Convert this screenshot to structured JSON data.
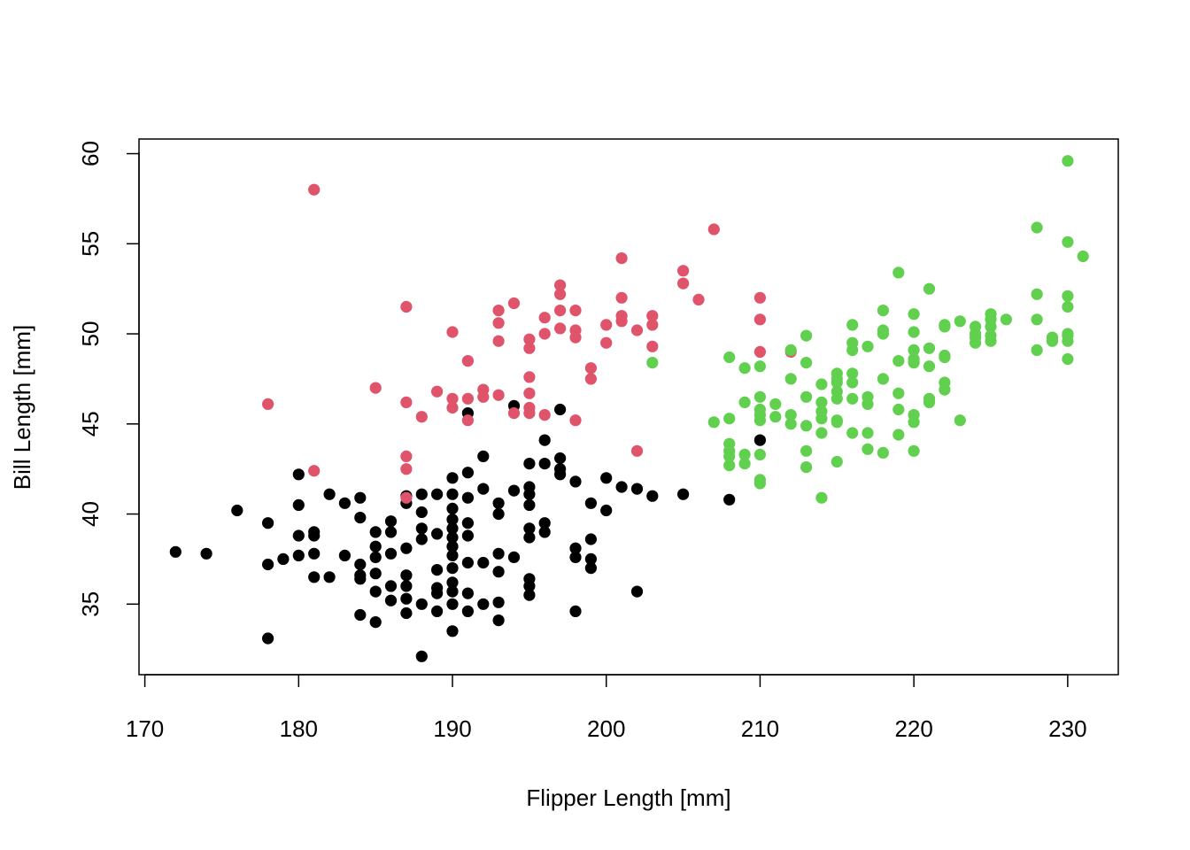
{
  "chart_data": {
    "type": "scatter",
    "title": "",
    "xlabel": "Flipper Length [mm]",
    "ylabel": "Bill Length [mm]",
    "xlim": [
      170,
      232
    ],
    "ylim": [
      31.5,
      60.5
    ],
    "x_ticks": [
      "170",
      "180",
      "190",
      "200",
      "210",
      "220",
      "230"
    ],
    "y_ticks": [
      "35",
      "40",
      "45",
      "50",
      "55",
      "60"
    ],
    "grid": false,
    "legend": "none",
    "series": [
      {
        "color": "#000000",
        "points": [
          [
            172,
            37.9
          ],
          [
            174,
            37.8
          ],
          [
            176,
            40.2
          ],
          [
            178,
            39.5
          ],
          [
            178,
            37.2
          ],
          [
            178,
            33.1
          ],
          [
            179,
            37.5
          ],
          [
            180,
            42.2
          ],
          [
            180,
            40.5
          ],
          [
            180,
            38.8
          ],
          [
            180,
            37.7
          ],
          [
            181,
            39.0
          ],
          [
            181,
            38.8
          ],
          [
            181,
            37.8
          ],
          [
            181,
            36.5
          ],
          [
            182,
            41.1
          ],
          [
            182,
            36.5
          ],
          [
            183,
            40.6
          ],
          [
            183,
            37.7
          ],
          [
            184,
            40.9
          ],
          [
            184,
            39.8
          ],
          [
            184,
            37.2
          ],
          [
            184,
            36.6
          ],
          [
            184,
            36.4
          ],
          [
            184,
            34.4
          ],
          [
            185,
            39.0
          ],
          [
            185,
            38.2
          ],
          [
            185,
            37.6
          ],
          [
            185,
            36.7
          ],
          [
            185,
            35.7
          ],
          [
            185,
            34.0
          ],
          [
            186,
            39.6
          ],
          [
            186,
            39.0
          ],
          [
            186,
            37.8
          ],
          [
            186,
            36.0
          ],
          [
            186,
            35.2
          ],
          [
            187,
            41.0
          ],
          [
            187,
            40.6
          ],
          [
            187,
            38.1
          ],
          [
            187,
            36.6
          ],
          [
            187,
            36.0
          ],
          [
            187,
            35.3
          ],
          [
            187,
            34.5
          ],
          [
            188,
            41.1
          ],
          [
            188,
            40.1
          ],
          [
            188,
            39.2
          ],
          [
            188,
            38.6
          ],
          [
            188,
            35.0
          ],
          [
            188,
            32.1
          ],
          [
            189,
            41.1
          ],
          [
            189,
            38.9
          ],
          [
            189,
            36.9
          ],
          [
            189,
            35.9
          ],
          [
            189,
            35.6
          ],
          [
            189,
            34.6
          ],
          [
            190,
            42.0
          ],
          [
            190,
            41.1
          ],
          [
            190,
            40.3
          ],
          [
            190,
            39.7
          ],
          [
            190,
            39.2
          ],
          [
            190,
            38.7
          ],
          [
            190,
            38.2
          ],
          [
            190,
            37.7
          ],
          [
            190,
            37.0
          ],
          [
            190,
            36.2
          ],
          [
            190,
            35.7
          ],
          [
            190,
            35.0
          ],
          [
            190,
            33.5
          ],
          [
            191,
            45.6
          ],
          [
            191,
            42.3
          ],
          [
            191,
            40.9
          ],
          [
            191,
            39.5
          ],
          [
            191,
            38.8
          ],
          [
            191,
            37.3
          ],
          [
            191,
            35.6
          ],
          [
            191,
            34.6
          ],
          [
            192,
            43.2
          ],
          [
            192,
            41.4
          ],
          [
            192,
            37.3
          ],
          [
            192,
            35.0
          ],
          [
            193,
            40.6
          ],
          [
            193,
            40.0
          ],
          [
            193,
            37.8
          ],
          [
            193,
            36.8
          ],
          [
            193,
            35.1
          ],
          [
            193,
            34.1
          ],
          [
            194,
            46.0
          ],
          [
            194,
            41.3
          ],
          [
            194,
            37.6
          ],
          [
            195,
            42.8
          ],
          [
            195,
            41.5
          ],
          [
            195,
            41.1
          ],
          [
            195,
            40.5
          ],
          [
            195,
            39.2
          ],
          [
            195,
            38.7
          ],
          [
            195,
            36.4
          ],
          [
            195,
            36.0
          ],
          [
            195,
            35.5
          ],
          [
            196,
            44.1
          ],
          [
            196,
            42.8
          ],
          [
            196,
            39.5
          ],
          [
            196,
            39.0
          ],
          [
            197,
            45.8
          ],
          [
            197,
            43.1
          ],
          [
            197,
            42.5
          ],
          [
            197,
            42.2
          ],
          [
            198,
            41.8
          ],
          [
            198,
            38.1
          ],
          [
            198,
            37.6
          ],
          [
            198,
            34.6
          ],
          [
            199,
            40.6
          ],
          [
            199,
            38.6
          ],
          [
            199,
            37.5
          ],
          [
            199,
            37.0
          ],
          [
            200,
            42.0
          ],
          [
            200,
            40.2
          ],
          [
            201,
            41.5
          ],
          [
            202,
            41.4
          ],
          [
            202,
            35.7
          ],
          [
            203,
            41.0
          ],
          [
            205,
            41.1
          ],
          [
            208,
            40.8
          ],
          [
            210,
            44.1
          ]
        ]
      },
      {
        "color": "#DF536B",
        "points": [
          [
            178,
            46.1
          ],
          [
            181,
            58.0
          ],
          [
            181,
            42.4
          ],
          [
            185,
            47.0
          ],
          [
            187,
            51.5
          ],
          [
            187,
            46.2
          ],
          [
            187,
            43.2
          ],
          [
            187,
            42.5
          ],
          [
            187,
            40.9
          ],
          [
            188,
            45.4
          ],
          [
            189,
            46.8
          ],
          [
            190,
            50.1
          ],
          [
            190,
            46.4
          ],
          [
            190,
            45.9
          ],
          [
            191,
            48.5
          ],
          [
            191,
            46.4
          ],
          [
            191,
            45.2
          ],
          [
            192,
            46.9
          ],
          [
            192,
            46.5
          ],
          [
            193,
            51.3
          ],
          [
            193,
            50.6
          ],
          [
            193,
            49.6
          ],
          [
            193,
            46.6
          ],
          [
            194,
            51.7
          ],
          [
            194,
            45.6
          ],
          [
            195,
            49.7
          ],
          [
            195,
            49.2
          ],
          [
            195,
            47.6
          ],
          [
            195,
            46.7
          ],
          [
            195,
            45.9
          ],
          [
            195,
            45.6
          ],
          [
            196,
            50.9
          ],
          [
            196,
            50.0
          ],
          [
            196,
            45.5
          ],
          [
            197,
            52.7
          ],
          [
            197,
            52.2
          ],
          [
            197,
            51.3
          ],
          [
            197,
            50.3
          ],
          [
            198,
            51.3
          ],
          [
            198,
            50.2
          ],
          [
            198,
            49.8
          ],
          [
            198,
            45.2
          ],
          [
            199,
            48.1
          ],
          [
            199,
            47.5
          ],
          [
            200,
            50.5
          ],
          [
            200,
            49.5
          ],
          [
            201,
            54.2
          ],
          [
            201,
            52.0
          ],
          [
            201,
            51.0
          ],
          [
            201,
            50.7
          ],
          [
            202,
            50.2
          ],
          [
            202,
            43.5
          ],
          [
            203,
            51.0
          ],
          [
            203,
            50.5
          ],
          [
            203,
            49.3
          ],
          [
            205,
            53.5
          ],
          [
            205,
            52.8
          ],
          [
            206,
            51.9
          ],
          [
            207,
            55.8
          ],
          [
            210,
            52.0
          ],
          [
            210,
            50.8
          ],
          [
            210,
            49.0
          ],
          [
            212,
            49.0
          ]
        ]
      },
      {
        "color": "#61D04F",
        "points": [
          [
            203,
            48.4
          ],
          [
            207,
            45.1
          ],
          [
            208,
            48.7
          ],
          [
            208,
            45.3
          ],
          [
            208,
            43.9
          ],
          [
            208,
            43.5
          ],
          [
            208,
            43.2
          ],
          [
            208,
            42.7
          ],
          [
            209,
            48.1
          ],
          [
            209,
            46.2
          ],
          [
            209,
            43.3
          ],
          [
            209,
            42.8
          ],
          [
            210,
            48.2
          ],
          [
            210,
            46.5
          ],
          [
            210,
            45.8
          ],
          [
            210,
            45.5
          ],
          [
            210,
            45.2
          ],
          [
            210,
            43.3
          ],
          [
            210,
            41.9
          ],
          [
            210,
            41.7
          ],
          [
            211,
            46.1
          ],
          [
            211,
            45.4
          ],
          [
            212,
            49.1
          ],
          [
            212,
            47.5
          ],
          [
            212,
            45.5
          ],
          [
            212,
            45.0
          ],
          [
            213,
            49.9
          ],
          [
            213,
            48.4
          ],
          [
            213,
            46.5
          ],
          [
            213,
            44.9
          ],
          [
            213,
            43.5
          ],
          [
            213,
            42.6
          ],
          [
            214,
            47.2
          ],
          [
            214,
            46.2
          ],
          [
            214,
            45.7
          ],
          [
            214,
            45.3
          ],
          [
            214,
            44.5
          ],
          [
            214,
            40.9
          ],
          [
            215,
            47.8
          ],
          [
            215,
            47.5
          ],
          [
            215,
            47.3
          ],
          [
            215,
            46.8
          ],
          [
            215,
            46.4
          ],
          [
            215,
            45.2
          ],
          [
            215,
            45.1
          ],
          [
            215,
            42.9
          ],
          [
            216,
            50.5
          ],
          [
            216,
            49.5
          ],
          [
            216,
            49.1
          ],
          [
            216,
            47.8
          ],
          [
            216,
            47.3
          ],
          [
            216,
            46.4
          ],
          [
            216,
            44.5
          ],
          [
            217,
            49.3
          ],
          [
            217,
            46.5
          ],
          [
            217,
            46.1
          ],
          [
            217,
            44.5
          ],
          [
            217,
            43.6
          ],
          [
            218,
            51.3
          ],
          [
            218,
            50.2
          ],
          [
            218,
            50.0
          ],
          [
            218,
            47.5
          ],
          [
            218,
            43.4
          ],
          [
            219,
            53.4
          ],
          [
            219,
            48.5
          ],
          [
            219,
            46.7
          ],
          [
            219,
            45.8
          ],
          [
            219,
            44.4
          ],
          [
            220,
            51.1
          ],
          [
            220,
            50.1
          ],
          [
            220,
            49.1
          ],
          [
            220,
            48.6
          ],
          [
            220,
            48.4
          ],
          [
            220,
            45.5
          ],
          [
            220,
            45.1
          ],
          [
            220,
            43.5
          ],
          [
            221,
            52.5
          ],
          [
            221,
            49.2
          ],
          [
            221,
            48.2
          ],
          [
            221,
            46.4
          ],
          [
            221,
            46.2
          ],
          [
            222,
            50.5
          ],
          [
            222,
            50.4
          ],
          [
            222,
            48.8
          ],
          [
            222,
            48.7
          ],
          [
            222,
            47.3
          ],
          [
            222,
            46.9
          ],
          [
            223,
            50.7
          ],
          [
            223,
            45.2
          ],
          [
            224,
            50.4
          ],
          [
            224,
            50.0
          ],
          [
            224,
            49.8
          ],
          [
            224,
            49.5
          ],
          [
            225,
            51.1
          ],
          [
            225,
            50.8
          ],
          [
            225,
            50.4
          ],
          [
            225,
            49.9
          ],
          [
            225,
            49.6
          ],
          [
            226,
            50.8
          ],
          [
            228,
            55.9
          ],
          [
            228,
            52.2
          ],
          [
            228,
            50.8
          ],
          [
            228,
            49.1
          ],
          [
            229,
            49.8
          ],
          [
            229,
            49.6
          ],
          [
            230,
            59.6
          ],
          [
            230,
            55.1
          ],
          [
            230,
            52.1
          ],
          [
            230,
            51.5
          ],
          [
            230,
            50.0
          ],
          [
            230,
            49.9
          ],
          [
            230,
            49.6
          ],
          [
            230,
            48.6
          ],
          [
            231,
            54.3
          ]
        ]
      }
    ]
  }
}
